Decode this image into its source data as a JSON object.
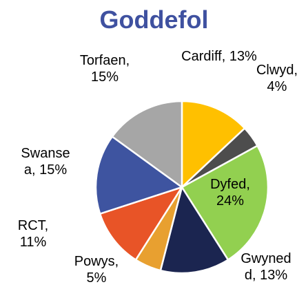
{
  "chart_data": {
    "type": "pie",
    "title": "Goddefol",
    "categories": [
      "Cardiff",
      "Clwyd",
      "Dyfed",
      "Gwynedd",
      "Powys",
      "RCT",
      "Swansea",
      "Torfaen"
    ],
    "values": [
      13,
      4,
      24,
      13,
      5,
      11,
      15,
      15
    ],
    "value_labels": [
      "Cardiff, 13%",
      "Clwyd, 4%",
      "Dyfed, 24%",
      "Gwynedd, 13%",
      "Powys, 5%",
      "RCT, 11%",
      "Swansea, 15%",
      "Torfaen, 15%"
    ],
    "colors": [
      "#ffc000",
      "#4d4d4d",
      "#92d050",
      "#1b2550",
      "#e8a030",
      "#e85427",
      "#3e54a0",
      "#a6a6a6"
    ]
  }
}
